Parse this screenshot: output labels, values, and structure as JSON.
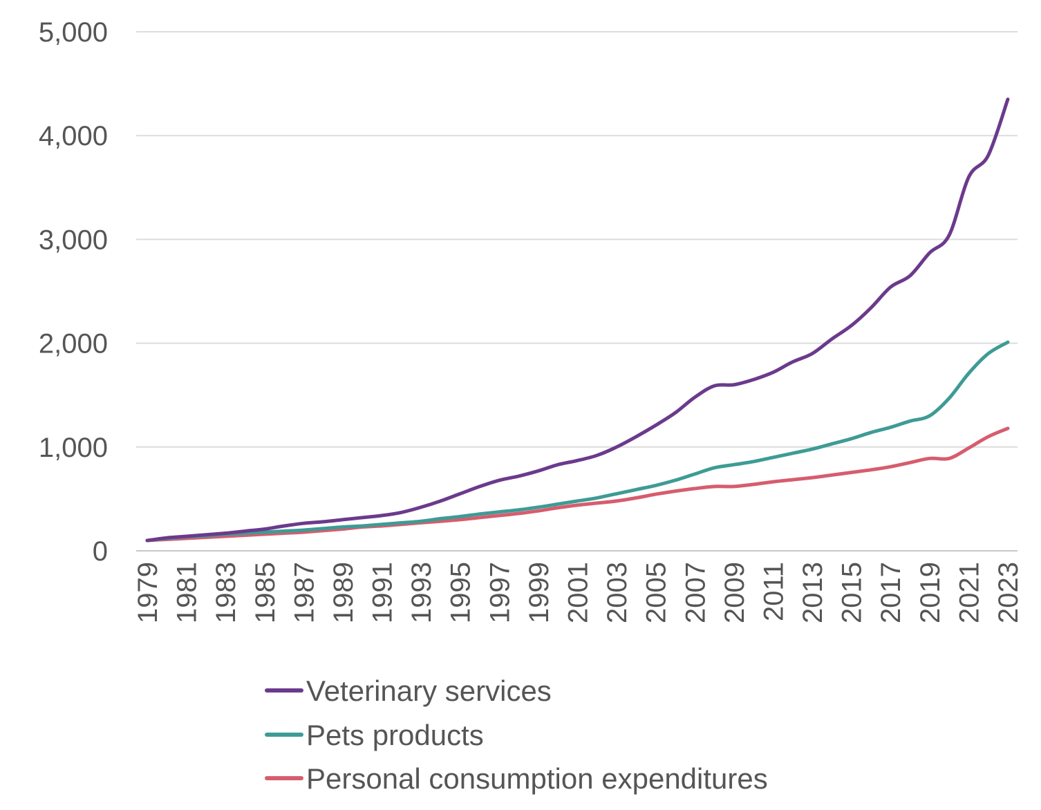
{
  "chart_data": {
    "type": "line",
    "title": "",
    "xlabel": "",
    "ylabel": "",
    "ylim": [
      0,
      5000
    ],
    "y_ticks": [
      "0",
      "1,000",
      "2,000",
      "3,000",
      "4,000",
      "5,000"
    ],
    "x_tick_labels": [
      "1979",
      "1981",
      "1983",
      "1985",
      "1987",
      "1989",
      "1991",
      "1993",
      "1995",
      "1997",
      "1999",
      "2001",
      "2003",
      "2005",
      "2007",
      "2009",
      "2011",
      "2013",
      "2015",
      "2017",
      "2019",
      "2021",
      "2023"
    ],
    "grid": true,
    "legend_position": "bottom",
    "x": [
      1979,
      1980,
      1981,
      1982,
      1983,
      1984,
      1985,
      1986,
      1987,
      1988,
      1989,
      1990,
      1991,
      1992,
      1993,
      1994,
      1995,
      1996,
      1997,
      1998,
      1999,
      2000,
      2001,
      2002,
      2003,
      2004,
      2005,
      2006,
      2007,
      2008,
      2009,
      2010,
      2011,
      2012,
      2013,
      2014,
      2015,
      2016,
      2017,
      2018,
      2019,
      2020,
      2021,
      2022,
      2023
    ],
    "series": [
      {
        "name": "Veterinary services",
        "color": "#6B3A8C",
        "values": [
          100,
          125,
          140,
          155,
          170,
          190,
          210,
          240,
          265,
          280,
          300,
          320,
          340,
          370,
          420,
          480,
          550,
          620,
          680,
          720,
          770,
          830,
          870,
          920,
          1000,
          1100,
          1210,
          1330,
          1480,
          1590,
          1600,
          1650,
          1720,
          1820,
          1900,
          2040,
          2170,
          2340,
          2540,
          2650,
          2870,
          3040,
          3600,
          3810,
          4350
        ]
      },
      {
        "name": "Pets products",
        "color": "#3E9B95",
        "values": [
          100,
          120,
          135,
          145,
          160,
          170,
          180,
          190,
          200,
          215,
          230,
          240,
          255,
          270,
          285,
          310,
          330,
          355,
          375,
          395,
          420,
          450,
          480,
          510,
          550,
          590,
          630,
          680,
          740,
          800,
          830,
          860,
          900,
          940,
          980,
          1030,
          1080,
          1140,
          1190,
          1250,
          1300,
          1470,
          1710,
          1900,
          2010
        ]
      },
      {
        "name": "Personal consumption expenditures",
        "color": "#D65D6E",
        "values": [
          100,
          110,
          120,
          130,
          140,
          150,
          160,
          170,
          180,
          195,
          210,
          230,
          240,
          255,
          270,
          285,
          300,
          320,
          340,
          360,
          385,
          415,
          440,
          460,
          480,
          510,
          545,
          575,
          600,
          620,
          620,
          640,
          665,
          685,
          705,
          730,
          755,
          780,
          810,
          850,
          890,
          890,
          990,
          1100,
          1180
        ]
      }
    ]
  }
}
